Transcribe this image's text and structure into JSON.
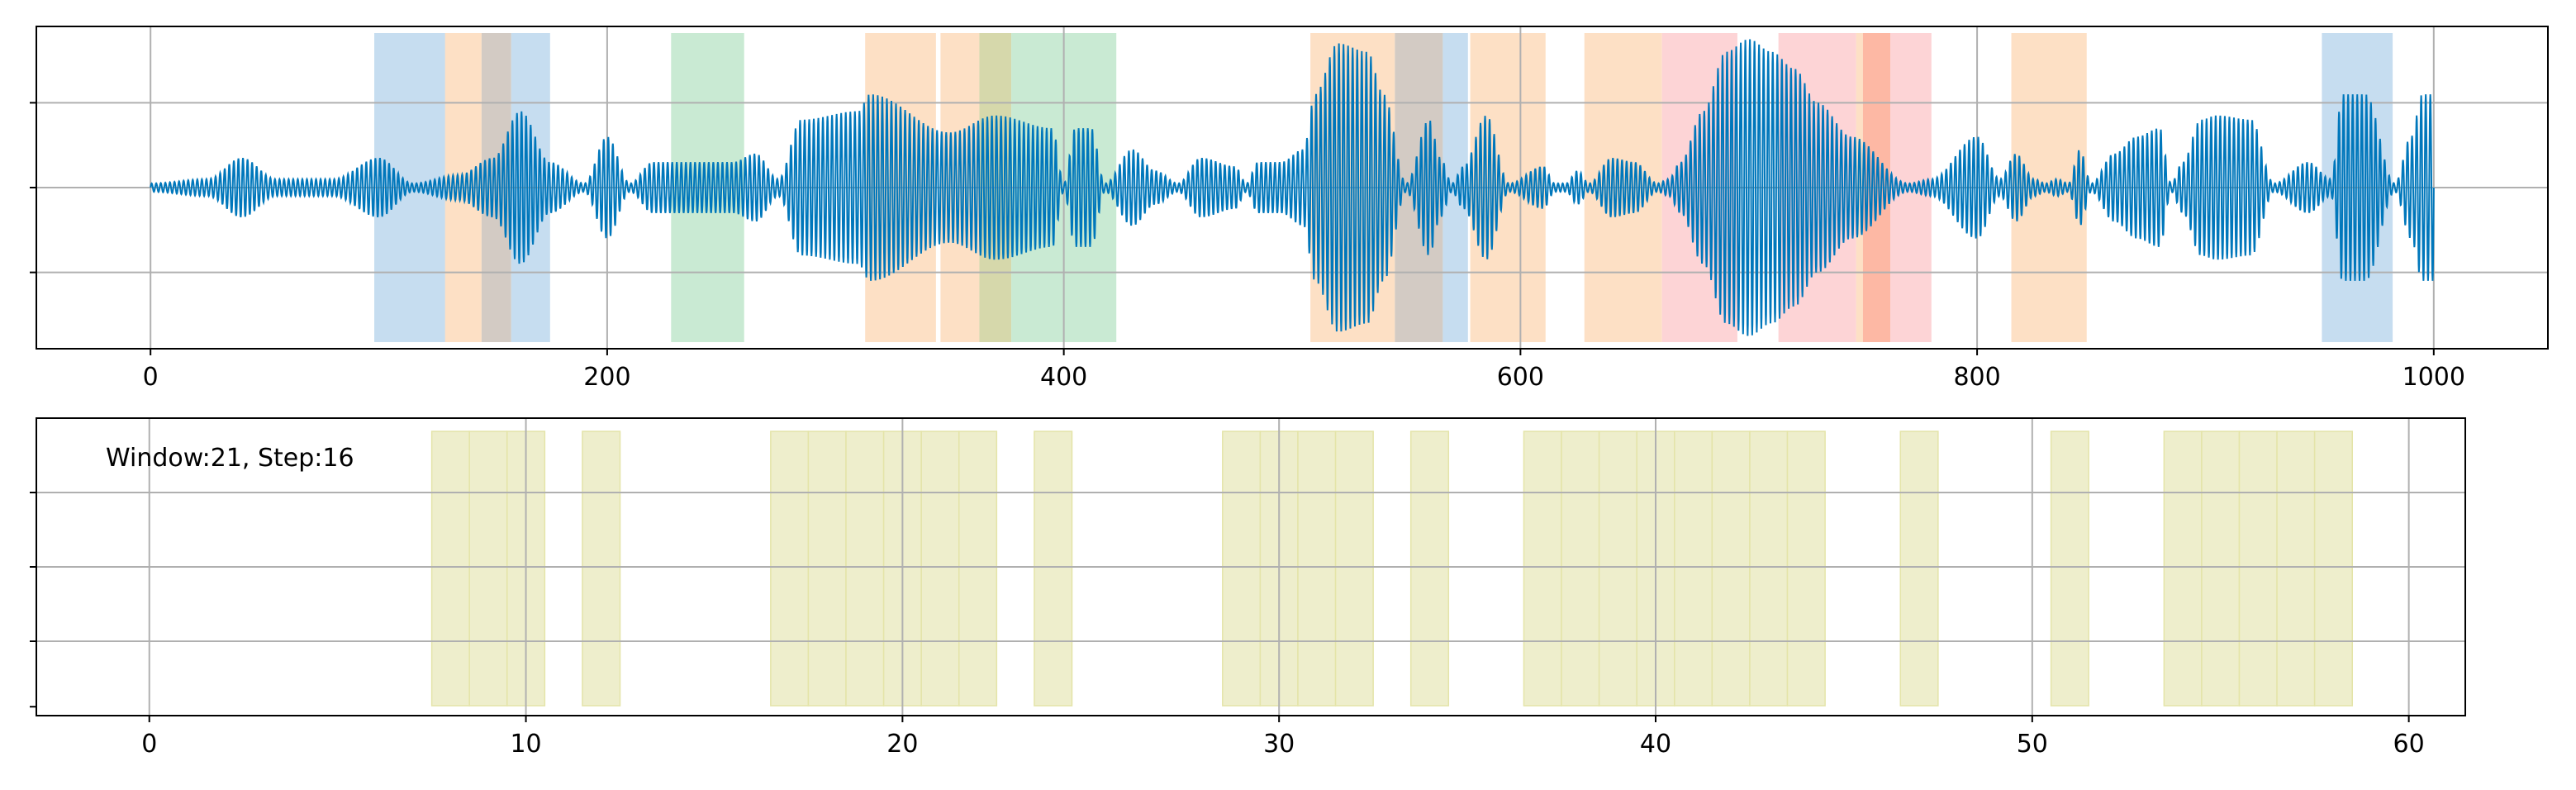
{
  "chart_data": [
    {
      "type": "area",
      "title": "",
      "xlabel": "",
      "ylabel": "",
      "xlim": [
        -50,
        1050
      ],
      "ylim": [
        -1.9,
        1.9
      ],
      "grid": true,
      "xticks": [
        0,
        200,
        400,
        600,
        800,
        1000
      ],
      "xtick_labels": [
        "0",
        "200",
        "400",
        "600",
        "800",
        "1000"
      ],
      "yticks": [
        -1,
        0,
        1
      ],
      "signal": {
        "color": "#0077bb",
        "x_range": [
          0,
          1000
        ],
        "carrier_cycles_per_unit": 0.5,
        "envelope_knots_x": [
          0,
          25,
          40,
          55,
          80,
          100,
          115,
          135,
          150,
          162,
          175,
          190,
          200,
          210,
          220,
          230,
          255,
          265,
          275,
          285,
          310,
          315,
          350,
          370,
          395,
          400,
          405,
          412,
          418,
          430,
          440,
          450,
          460,
          475,
          480,
          485,
          495,
          505,
          510,
          520,
          533,
          540,
          550,
          560,
          565,
          570,
          575,
          585,
          595,
          610,
          615,
          620,
          625,
          630,
          640,
          650,
          660,
          665,
          670,
          680,
          690,
          700,
          710,
          720,
          730,
          745,
          770,
          780,
          800,
          810,
          817,
          825,
          830,
          835,
          840,
          845,
          850,
          860,
          870,
          880,
          885,
          890,
          898,
          905,
          920,
          930,
          945,
          955,
          960,
          970,
          983,
          990,
          995,
          1000
        ],
        "envelope_knots_y": [
          0.05,
          0.1,
          0.35,
          0.1,
          0.1,
          0.35,
          0.05,
          0.15,
          0.35,
          0.9,
          0.3,
          0.05,
          0.6,
          0.05,
          0.3,
          0.3,
          0.3,
          0.4,
          0.1,
          0.8,
          0.9,
          1.1,
          0.65,
          0.85,
          0.7,
          0.05,
          0.7,
          0.7,
          0.05,
          0.45,
          0.2,
          0.05,
          0.35,
          0.25,
          0.05,
          0.3,
          0.3,
          0.45,
          1.1,
          1.7,
          1.6,
          1.1,
          0.05,
          0.8,
          0.35,
          0.05,
          0.25,
          0.85,
          0.05,
          0.25,
          0.05,
          0.05,
          0.2,
          0.05,
          0.35,
          0.3,
          0.05,
          0.1,
          0.3,
          0.9,
          1.6,
          1.75,
          1.6,
          1.4,
          1.0,
          0.6,
          0.05,
          0.1,
          0.6,
          0.1,
          0.4,
          0.1,
          0.05,
          0.1,
          0.05,
          0.45,
          0.05,
          0.4,
          0.6,
          0.7,
          0.05,
          0.3,
          0.8,
          0.85,
          0.8,
          0.05,
          0.3,
          0.1,
          1.1,
          1.1,
          0.05,
          0.6,
          1.1,
          1.1
        ]
      },
      "highlight_spans": [
        {
          "x0": 98,
          "x1": 130,
          "color": "#c6ddf0"
        },
        {
          "x0": 129,
          "x1": 145,
          "color": "#fde0c5"
        },
        {
          "x0": 145,
          "x1": 158,
          "color": "#d3cbc4"
        },
        {
          "x0": 158,
          "x1": 175,
          "color": "#c6ddf0"
        },
        {
          "x0": 228,
          "x1": 260,
          "color": "#c9ead3"
        },
        {
          "x0": 313,
          "x1": 344,
          "color": "#fde0c5"
        },
        {
          "x0": 346,
          "x1": 363,
          "color": "#fde0c5"
        },
        {
          "x0": 363,
          "x1": 377,
          "color": "#d6d8ab"
        },
        {
          "x0": 377,
          "x1": 423,
          "color": "#c9ead3"
        },
        {
          "x0": 508,
          "x1": 545,
          "color": "#fde0c5"
        },
        {
          "x0": 545,
          "x1": 566,
          "color": "#d3cbc4"
        },
        {
          "x0": 566,
          "x1": 577,
          "color": "#c6ddf0"
        },
        {
          "x0": 578,
          "x1": 611,
          "color": "#fde0c5"
        },
        {
          "x0": 628,
          "x1": 662,
          "color": "#fde0c5"
        },
        {
          "x0": 662,
          "x1": 695,
          "color": "#fdd4d6"
        },
        {
          "x0": 713,
          "x1": 747,
          "color": "#fdd4d6"
        },
        {
          "x0": 747,
          "x1": 750,
          "color": "#fde0c5"
        },
        {
          "x0": 750,
          "x1": 762,
          "color": "#fdb8a4"
        },
        {
          "x0": 762,
          "x1": 780,
          "color": "#fdd4d6"
        },
        {
          "x0": 815,
          "x1": 848,
          "color": "#fde0c5"
        },
        {
          "x0": 951,
          "x1": 982,
          "color": "#c6ddf0"
        }
      ]
    },
    {
      "type": "bar",
      "title": "",
      "xlabel": "",
      "ylabel": "",
      "xlim": [
        -3,
        61.5
      ],
      "ylim": [
        0,
        1
      ],
      "grid": true,
      "annotation": "Window:21, Step:16",
      "xticks": [
        0,
        10,
        20,
        30,
        40,
        50,
        60
      ],
      "xtick_labels": [
        "0",
        "10",
        "20",
        "30",
        "40",
        "50",
        "60"
      ],
      "yticks": [
        0.25,
        0.5,
        0.75
      ],
      "bar_color": "#eeeecc",
      "bar_edge_color": "#e4e4a8",
      "active_windows": [
        8,
        9,
        10,
        12,
        17,
        18,
        19,
        20,
        21,
        22,
        24,
        29,
        30,
        31,
        32,
        34,
        37,
        38,
        39,
        40,
        41,
        42,
        43,
        44,
        47,
        51,
        54,
        55,
        56,
        57,
        58
      ]
    }
  ]
}
